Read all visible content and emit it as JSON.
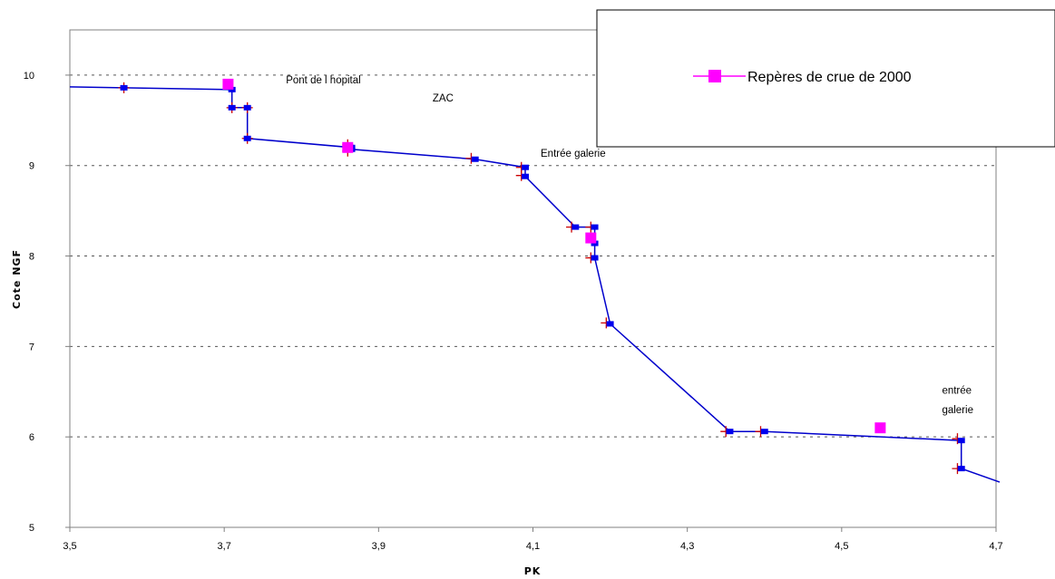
{
  "chart_data": {
    "type": "line",
    "xlabel": "PK",
    "ylabel": "Cote NGF",
    "xlim": [
      3.5,
      4.7
    ],
    "ylim": [
      5,
      10.5
    ],
    "x_ticks": [
      "3,5",
      "3,7",
      "3,9",
      "4,1",
      "4,3",
      "4,5",
      "4,7"
    ],
    "x_tick_values": [
      3.5,
      3.7,
      3.9,
      4.1,
      4.3,
      4.5,
      4.7
    ],
    "y_ticks": [
      "5",
      "6",
      "7",
      "8",
      "9",
      "10"
    ],
    "y_tick_values": [
      5,
      6,
      7,
      8,
      9,
      10
    ],
    "grid": "horizontal dotted",
    "legend_position": "top-right",
    "colors": {
      "line": "#0000cc",
      "marker": "#0000ee",
      "cross": "#cc0000",
      "reperes": "#ff00ff"
    },
    "series": [
      {
        "style": "line-with-markers",
        "points": [
          {
            "x": 3.5,
            "y": 9.87
          },
          {
            "x": 3.57,
            "y": 9.86
          },
          {
            "x": 3.71,
            "y": 9.84
          },
          {
            "x": 3.71,
            "y": 9.64
          },
          {
            "x": 3.73,
            "y": 9.64
          },
          {
            "x": 3.73,
            "y": 9.3
          },
          {
            "x": 3.865,
            "y": 9.2
          },
          {
            "x": 3.865,
            "y": 9.18
          },
          {
            "x": 4.025,
            "y": 9.07
          },
          {
            "x": 4.09,
            "y": 8.98
          },
          {
            "x": 4.09,
            "y": 8.88
          },
          {
            "x": 4.155,
            "y": 8.32
          },
          {
            "x": 4.18,
            "y": 8.32
          },
          {
            "x": 4.18,
            "y": 8.14
          },
          {
            "x": 4.18,
            "y": 7.98
          },
          {
            "x": 4.2,
            "y": 7.25
          },
          {
            "x": 4.355,
            "y": 6.06
          },
          {
            "x": 4.4,
            "y": 6.06
          },
          {
            "x": 4.655,
            "y": 5.96
          },
          {
            "x": 4.655,
            "y": 5.65
          },
          {
            "x": 4.71,
            "y": 5.5
          }
        ],
        "crosses": [
          {
            "x": 3.57,
            "y": 9.86
          },
          {
            "x": 3.71,
            "y": 9.64
          },
          {
            "x": 3.73,
            "y": 9.64
          },
          {
            "x": 3.73,
            "y": 9.3
          },
          {
            "x": 3.86,
            "y": 9.23
          },
          {
            "x": 3.86,
            "y": 9.16
          },
          {
            "x": 4.02,
            "y": 9.08
          },
          {
            "x": 4.085,
            "y": 8.98
          },
          {
            "x": 4.085,
            "y": 8.89
          },
          {
            "x": 4.15,
            "y": 8.32
          },
          {
            "x": 4.175,
            "y": 8.32
          },
          {
            "x": 4.175,
            "y": 7.98
          },
          {
            "x": 4.195,
            "y": 7.26
          },
          {
            "x": 4.35,
            "y": 6.06
          },
          {
            "x": 4.395,
            "y": 6.06
          },
          {
            "x": 4.65,
            "y": 5.98
          },
          {
            "x": 4.65,
            "y": 5.65
          }
        ]
      },
      {
        "name": "Repères de crue de 2000",
        "style": "markers",
        "points": [
          {
            "x": 3.705,
            "y": 9.9
          },
          {
            "x": 3.86,
            "y": 9.2
          },
          {
            "x": 4.175,
            "y": 8.2
          },
          {
            "x": 4.55,
            "y": 6.1
          }
        ]
      }
    ],
    "annotations": [
      {
        "text": "Pont de l hopital",
        "x": 3.78,
        "y": 9.95
      },
      {
        "text": "ZAC",
        "x": 3.97,
        "y": 9.75
      },
      {
        "text": "Entrée galerie",
        "x": 4.11,
        "y": 9.14
      },
      {
        "text": "entrée",
        "x": 4.63,
        "y": 6.52
      },
      {
        "text": "galerie",
        "x": 4.63,
        "y": 6.3
      }
    ]
  }
}
